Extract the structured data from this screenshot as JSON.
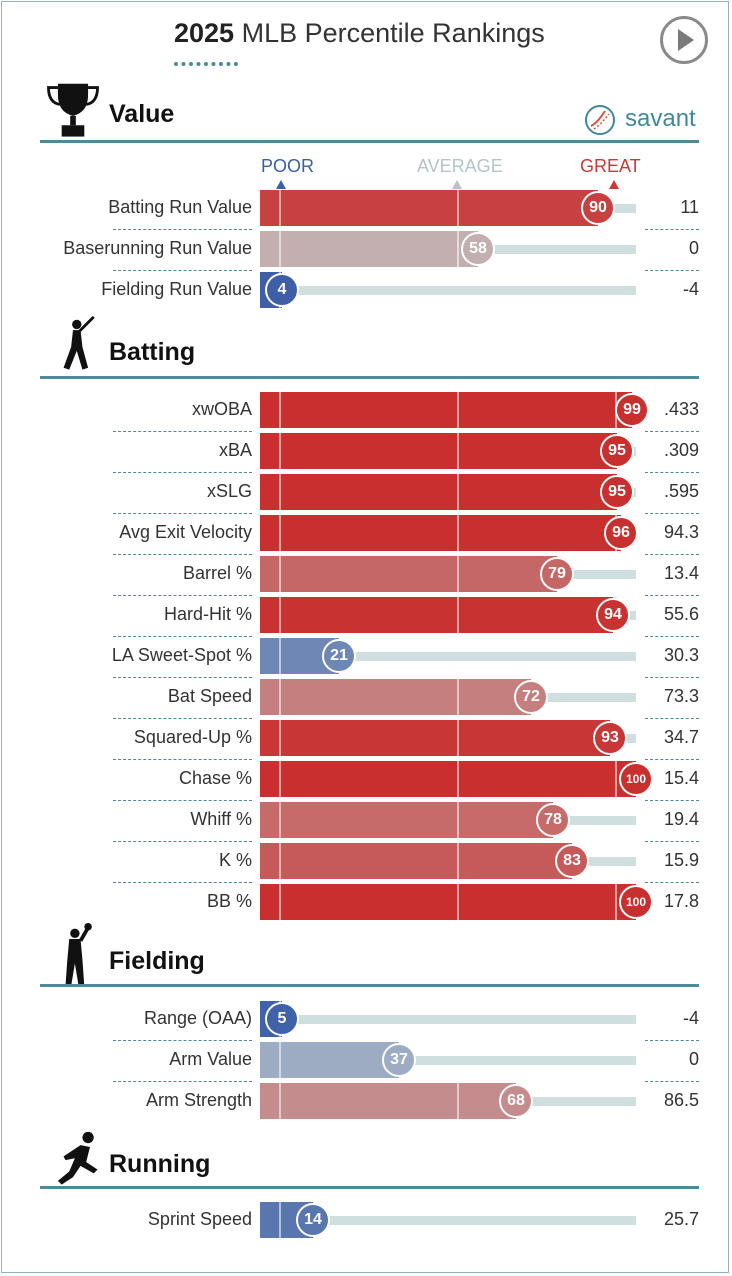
{
  "header": {
    "title_year": "2025",
    "title_rest": "MLB Percentile Rankings",
    "play_icon": "play-circle-icon"
  },
  "brand": {
    "name": "savant",
    "icon": "baseball-logo-icon",
    "accent": "#3f8a99"
  },
  "scale": {
    "poor": "POOR",
    "average": "AVERAGE",
    "great": "GREAT",
    "poor_color": "#3a5fa8",
    "average_color": "#b5c4c8",
    "great_color": "#c83a36"
  },
  "chart_data": {
    "type": "bar",
    "xlim": [
      0,
      100
    ],
    "sections": [
      {
        "name": "Value",
        "icon": "trophy-icon",
        "rows": [
          {
            "label": "Batting Run Value",
            "percentile": 90,
            "value": "11"
          },
          {
            "label": "Baserunning Run Value",
            "percentile": 58,
            "value": "0"
          },
          {
            "label": "Fielding Run Value",
            "percentile": 4,
            "value": "-4"
          }
        ]
      },
      {
        "name": "Batting",
        "icon": "batter-icon",
        "rows": [
          {
            "label": "xwOBA",
            "percentile": 99,
            "value": ".433"
          },
          {
            "label": "xBA",
            "percentile": 95,
            "value": ".309"
          },
          {
            "label": "xSLG",
            "percentile": 95,
            "value": ".595"
          },
          {
            "label": "Avg Exit Velocity",
            "percentile": 96,
            "value": "94.3"
          },
          {
            "label": "Barrel %",
            "percentile": 79,
            "value": "13.4"
          },
          {
            "label": "Hard-Hit %",
            "percentile": 94,
            "value": "55.6"
          },
          {
            "label": "LA Sweet-Spot %",
            "percentile": 21,
            "value": "30.3"
          },
          {
            "label": "Bat Speed",
            "percentile": 72,
            "value": "73.3"
          },
          {
            "label": "Squared-Up %",
            "percentile": 93,
            "value": "34.7"
          },
          {
            "label": "Chase %",
            "percentile": 100,
            "value": "15.4"
          },
          {
            "label": "Whiff %",
            "percentile": 78,
            "value": "19.4"
          },
          {
            "label": "K %",
            "percentile": 83,
            "value": "15.9"
          },
          {
            "label": "BB %",
            "percentile": 100,
            "value": "17.8"
          }
        ]
      },
      {
        "name": "Fielding",
        "icon": "fielder-icon",
        "rows": [
          {
            "label": "Range (OAA)",
            "percentile": 5,
            "value": "-4"
          },
          {
            "label": "Arm Value",
            "percentile": 37,
            "value": "0"
          },
          {
            "label": "Arm Strength",
            "percentile": 68,
            "value": "86.5"
          }
        ]
      },
      {
        "name": "Running",
        "icon": "runner-icon",
        "rows": [
          {
            "label": "Sprint Speed",
            "percentile": 14,
            "value": "25.7"
          }
        ]
      }
    ]
  }
}
